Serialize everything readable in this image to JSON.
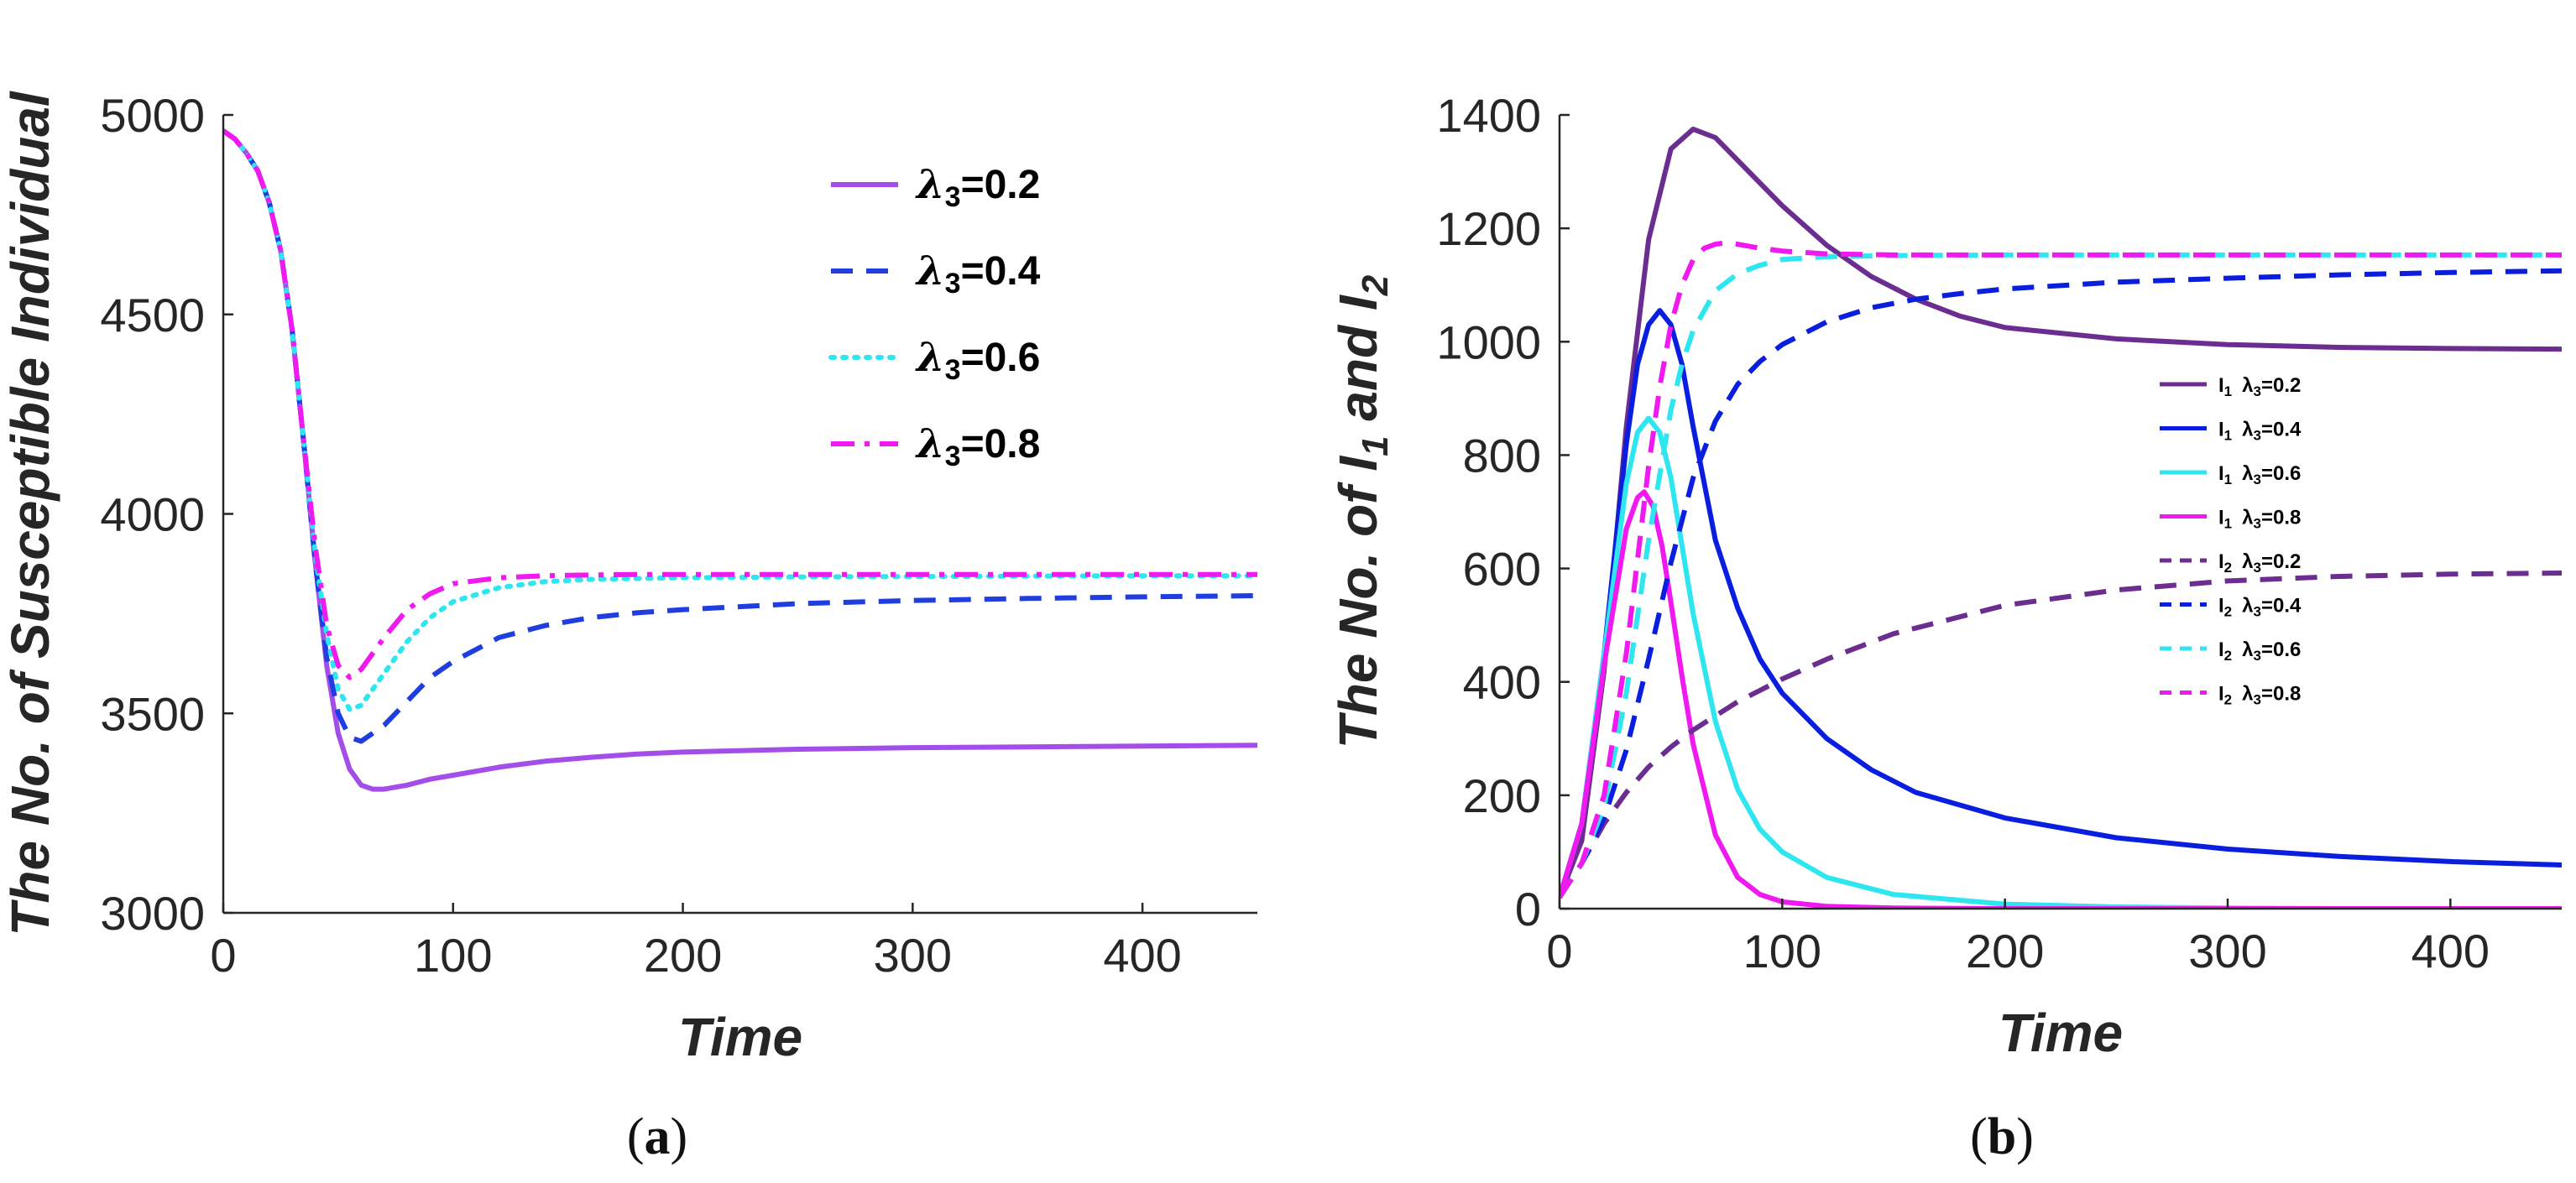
{
  "chart_data": [
    {
      "type": "line",
      "panel_label": "a",
      "xlabel": "Time",
      "ylabel": "The No. of Susceptible Individual",
      "xlim": [
        0,
        450
      ],
      "ylim": [
        3000,
        5000
      ],
      "xticks": [
        "0",
        "100",
        "200",
        "300",
        "400"
      ],
      "yticks": [
        "3000",
        "3500",
        "4000",
        "4500",
        "5000"
      ],
      "legend_position": "top-right",
      "series": [
        {
          "name": "λ3=0.2",
          "symbol": "λ",
          "sub": "3",
          "suffix": "=0.2",
          "color": "#a34ee9",
          "style": "solid",
          "x": [
            0,
            5,
            10,
            15,
            20,
            25,
            30,
            35,
            40,
            45,
            50,
            55,
            60,
            65,
            70,
            80,
            90,
            100,
            120,
            140,
            160,
            180,
            200,
            250,
            300,
            350,
            400,
            450
          ],
          "y": [
            4960,
            4940,
            4905,
            4860,
            4780,
            4660,
            4460,
            4180,
            3880,
            3620,
            3450,
            3360,
            3320,
            3310,
            3310,
            3320,
            3335,
            3345,
            3365,
            3380,
            3390,
            3398,
            3403,
            3410,
            3414,
            3416,
            3418,
            3420
          ]
        },
        {
          "name": "λ3=0.4",
          "symbol": "λ",
          "sub": "3",
          "suffix": "=0.4",
          "color": "#1f3ee0",
          "style": "dashed",
          "x": [
            0,
            5,
            10,
            15,
            20,
            25,
            30,
            35,
            40,
            45,
            50,
            55,
            60,
            70,
            80,
            90,
            100,
            120,
            140,
            160,
            180,
            200,
            250,
            300,
            350,
            400,
            450
          ],
          "y": [
            4960,
            4940,
            4905,
            4860,
            4780,
            4660,
            4460,
            4180,
            3880,
            3640,
            3500,
            3440,
            3430,
            3470,
            3530,
            3590,
            3630,
            3690,
            3720,
            3740,
            3752,
            3760,
            3775,
            3783,
            3788,
            3792,
            3795
          ]
        },
        {
          "name": "λ3=0.6",
          "symbol": "λ",
          "sub": "3",
          "suffix": "=0.6",
          "color": "#2ee6f0",
          "style": "dotted",
          "x": [
            0,
            5,
            10,
            15,
            20,
            25,
            30,
            35,
            40,
            45,
            50,
            55,
            60,
            70,
            80,
            90,
            100,
            120,
            140,
            160,
            180,
            200,
            250,
            300,
            350,
            400,
            450
          ],
          "y": [
            4960,
            4940,
            4905,
            4860,
            4780,
            4660,
            4460,
            4180,
            3900,
            3700,
            3560,
            3510,
            3520,
            3600,
            3680,
            3740,
            3780,
            3815,
            3830,
            3836,
            3838,
            3840,
            3842,
            3843,
            3844,
            3845,
            3845
          ]
        },
        {
          "name": "λ3=0.8",
          "symbol": "λ",
          "sub": "3",
          "suffix": "=0.8",
          "color": "#f01af0",
          "style": "dashdot",
          "x": [
            0,
            5,
            10,
            15,
            20,
            25,
            30,
            35,
            40,
            45,
            50,
            55,
            60,
            70,
            80,
            90,
            100,
            120,
            140,
            160,
            180,
            200,
            250,
            300,
            350,
            400,
            450
          ],
          "y": [
            4960,
            4940,
            4905,
            4860,
            4780,
            4660,
            4460,
            4180,
            3920,
            3720,
            3620,
            3590,
            3610,
            3690,
            3760,
            3800,
            3825,
            3840,
            3845,
            3847,
            3848,
            3848,
            3848,
            3848,
            3848,
            3848,
            3848
          ]
        }
      ]
    },
    {
      "type": "line",
      "panel_label": "b",
      "xlabel": "Time",
      "ylabel": "The No. of I1 and I2",
      "ylabel_parts": {
        "prefix": "The No. of I",
        "sub1": "1",
        "mid": " and I",
        "sub2": "2"
      },
      "xlim": [
        0,
        450
      ],
      "ylim": [
        0,
        1400
      ],
      "xticks": [
        "0",
        "100",
        "200",
        "300",
        "400"
      ],
      "yticks": [
        "0",
        "200",
        "400",
        "600",
        "800",
        "1000",
        "1200",
        "1400"
      ],
      "legend_position": "center-right",
      "series": [
        {
          "name": "I1 λ3=0.2",
          "var": "I",
          "var_sub": "1",
          "symbol": "λ",
          "sub": "3",
          "suffix": "=0.2",
          "color": "#6b2d8f",
          "style": "solid",
          "x": [
            0,
            10,
            20,
            30,
            40,
            50,
            60,
            70,
            80,
            100,
            120,
            140,
            160,
            180,
            200,
            250,
            300,
            350,
            400,
            450
          ],
          "y": [
            20,
            120,
            420,
            850,
            1180,
            1340,
            1375,
            1360,
            1320,
            1240,
            1170,
            1115,
            1075,
            1045,
            1025,
            1005,
            995,
            990,
            988,
            987
          ]
        },
        {
          "name": "I1 λ3=0.4",
          "var": "I",
          "var_sub": "1",
          "symbol": "λ",
          "sub": "3",
          "suffix": "=0.4",
          "color": "#0a1ee0",
          "style": "solid",
          "x": [
            0,
            10,
            20,
            30,
            35,
            40,
            45,
            50,
            55,
            60,
            70,
            80,
            90,
            100,
            120,
            140,
            160,
            200,
            250,
            300,
            350,
            400,
            450
          ],
          "y": [
            20,
            150,
            450,
            820,
            960,
            1030,
            1055,
            1030,
            960,
            850,
            650,
            530,
            440,
            380,
            300,
            245,
            205,
            160,
            125,
            105,
            92,
            83,
            77
          ]
        },
        {
          "name": "I1 λ3=0.6",
          "var": "I",
          "var_sub": "1",
          "symbol": "λ",
          "sub": "3",
          "suffix": "=0.6",
          "color": "#2ee6f0",
          "style": "solid",
          "x": [
            0,
            10,
            20,
            30,
            35,
            40,
            45,
            50,
            55,
            60,
            70,
            80,
            90,
            100,
            120,
            150,
            200,
            250,
            300,
            350,
            400,
            450
          ],
          "y": [
            20,
            150,
            450,
            750,
            840,
            865,
            840,
            760,
            640,
            520,
            330,
            210,
            140,
            100,
            55,
            25,
            8,
            3,
            1,
            0,
            0,
            0
          ]
        },
        {
          "name": "I1 λ3=0.8",
          "var": "I",
          "var_sub": "1",
          "symbol": "λ",
          "sub": "3",
          "suffix": "=0.8",
          "color": "#f01af0",
          "style": "solid",
          "x": [
            0,
            10,
            20,
            30,
            35,
            38,
            42,
            46,
            50,
            55,
            60,
            70,
            80,
            90,
            100,
            120,
            150,
            200,
            250,
            300,
            400,
            450
          ],
          "y": [
            20,
            150,
            430,
            670,
            725,
            735,
            710,
            640,
            540,
            410,
            290,
            130,
            55,
            25,
            12,
            4,
            1,
            0,
            0,
            0,
            0,
            0
          ]
        },
        {
          "name": "I2 λ3=0.2",
          "var": "I",
          "var_sub": "2",
          "symbol": "λ",
          "sub": "3",
          "suffix": "=0.2",
          "color": "#6b2d8f",
          "style": "dashed",
          "x": [
            0,
            10,
            20,
            30,
            40,
            50,
            60,
            80,
            100,
            120,
            150,
            200,
            250,
            300,
            350,
            400,
            450
          ],
          "y": [
            20,
            80,
            150,
            205,
            250,
            285,
            315,
            365,
            405,
            440,
            485,
            535,
            562,
            578,
            586,
            590,
            592
          ]
        },
        {
          "name": "I2 λ3=0.4",
          "var": "I",
          "var_sub": "2",
          "symbol": "λ",
          "sub": "3",
          "suffix": "=0.4",
          "color": "#0a1ee0",
          "style": "dashed",
          "x": [
            0,
            10,
            20,
            30,
            40,
            50,
            60,
            70,
            80,
            90,
            100,
            120,
            140,
            160,
            180,
            200,
            250,
            300,
            350,
            400,
            450
          ],
          "y": [
            20,
            80,
            160,
            280,
            440,
            610,
            760,
            860,
            925,
            965,
            995,
            1035,
            1060,
            1075,
            1085,
            1093,
            1105,
            1112,
            1118,
            1122,
            1125
          ]
        },
        {
          "name": "I2 λ3=0.6",
          "var": "I",
          "var_sub": "2",
          "symbol": "λ",
          "sub": "3",
          "suffix": "=0.6",
          "color": "#2ee6f0",
          "style": "dashed",
          "x": [
            0,
            10,
            20,
            30,
            40,
            50,
            55,
            60,
            70,
            80,
            90,
            100,
            120,
            150,
            200,
            250,
            300,
            350,
            400,
            450
          ],
          "y": [
            20,
            80,
            180,
            380,
            650,
            880,
            960,
            1020,
            1090,
            1120,
            1135,
            1145,
            1150,
            1152,
            1153,
            1153,
            1153,
            1153,
            1153,
            1153
          ]
        },
        {
          "name": "I2 λ3=0.8",
          "var": "I",
          "var_sub": "2",
          "symbol": "λ",
          "sub": "3",
          "suffix": "=0.8",
          "color": "#f01af0",
          "style": "dashed",
          "x": [
            0,
            10,
            20,
            30,
            40,
            45,
            50,
            55,
            60,
            65,
            70,
            75,
            80,
            90,
            100,
            120,
            150,
            200,
            250,
            300,
            350,
            400,
            450
          ],
          "y": [
            20,
            80,
            200,
            450,
            780,
            920,
            1030,
            1100,
            1145,
            1165,
            1172,
            1175,
            1172,
            1165,
            1160,
            1155,
            1153,
            1153,
            1153,
            1153,
            1153,
            1153,
            1153
          ]
        }
      ]
    }
  ]
}
